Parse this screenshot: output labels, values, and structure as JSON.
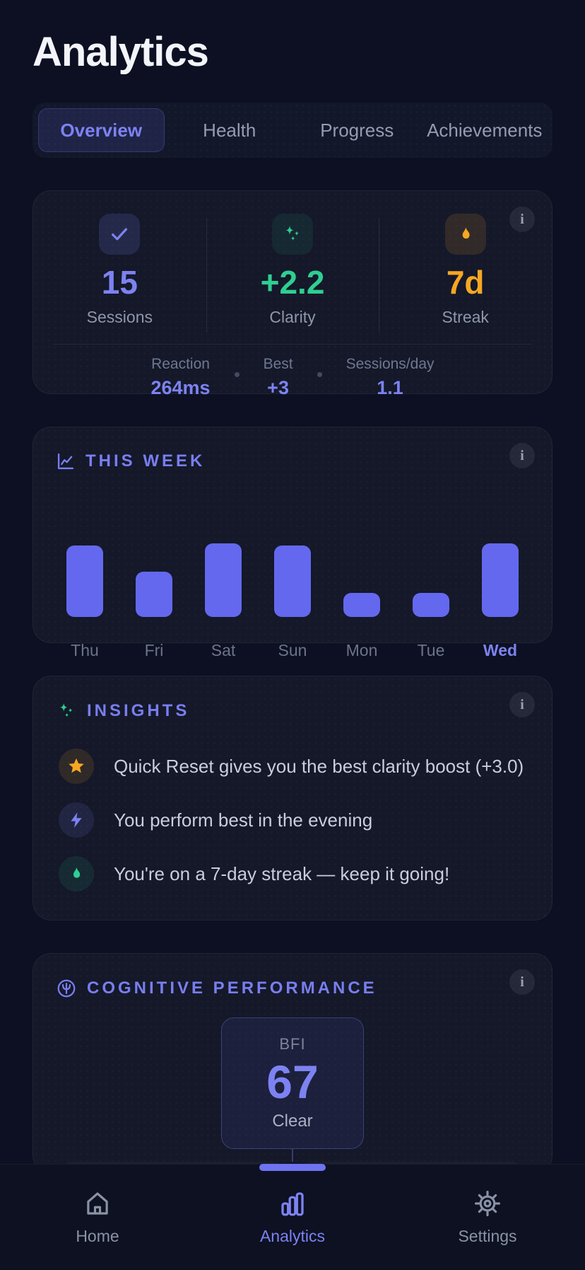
{
  "page": {
    "title": "Analytics",
    "accent_color": "#7d82f2",
    "background_color": "#0c1022"
  },
  "tabs": {
    "active_index": 0,
    "items": [
      {
        "label": "Overview"
      },
      {
        "label": "Health"
      },
      {
        "label": "Progress"
      },
      {
        "label": "Achievements"
      }
    ]
  },
  "stats_card": {
    "info_icon": "info-icon",
    "stats": [
      {
        "icon": "check-icon",
        "value": "15",
        "label": "Sessions",
        "color": "#7d82f2"
      },
      {
        "icon": "sparkles-icon",
        "value": "+2.2",
        "label": "Clarity",
        "color": "#2fce92"
      },
      {
        "icon": "flame-icon",
        "value": "7d",
        "label": "Streak",
        "color": "#f6a723"
      }
    ],
    "sub_metrics": [
      {
        "label": "Reaction",
        "value": "264ms"
      },
      {
        "label": "Best",
        "value": "+3"
      },
      {
        "label": "Sessions/day",
        "value": "1.1"
      }
    ]
  },
  "week_card": {
    "title": "THIS WEEK",
    "title_icon": "line-chart-icon",
    "info_icon": "info-icon",
    "chart_data": {
      "type": "bar",
      "categories": [
        "Thu",
        "Fri",
        "Sat",
        "Sun",
        "Mon",
        "Tue",
        "Wed"
      ],
      "values": [
        0.97,
        0.62,
        1.0,
        0.97,
        0.33,
        0.33,
        1.0
      ],
      "value_scale": "relative bar heights (no numeric axis shown in chart)",
      "highlight_category": "Wed",
      "bar_color": "#6468ee",
      "grid": false,
      "legend": false
    }
  },
  "insights_card": {
    "title": "INSIGHTS",
    "title_icon": "sparkles-icon",
    "info_icon": "info-icon",
    "items": [
      {
        "icon": "star-icon",
        "color": "#f6a723",
        "text": "Quick Reset gives you the best clarity boost (+3.0)"
      },
      {
        "icon": "bolt-icon",
        "color": "#7d82f2",
        "text": "You perform best in the evening"
      },
      {
        "icon": "flame-icon",
        "color": "#2fce92",
        "text": "You're on a 7-day streak — keep it going!"
      }
    ]
  },
  "cognitive_card": {
    "title": "COGNITIVE PERFORMANCE",
    "title_icon": "brain-icon",
    "info_icon": "info-icon",
    "bfi": {
      "label": "BFI",
      "value": "67",
      "status": "Clear"
    }
  },
  "bottom_nav": {
    "active_index": 1,
    "items": [
      {
        "icon": "home-icon",
        "label": "Home"
      },
      {
        "icon": "analytics-icon",
        "label": "Analytics"
      },
      {
        "icon": "settings-icon",
        "label": "Settings"
      }
    ]
  }
}
